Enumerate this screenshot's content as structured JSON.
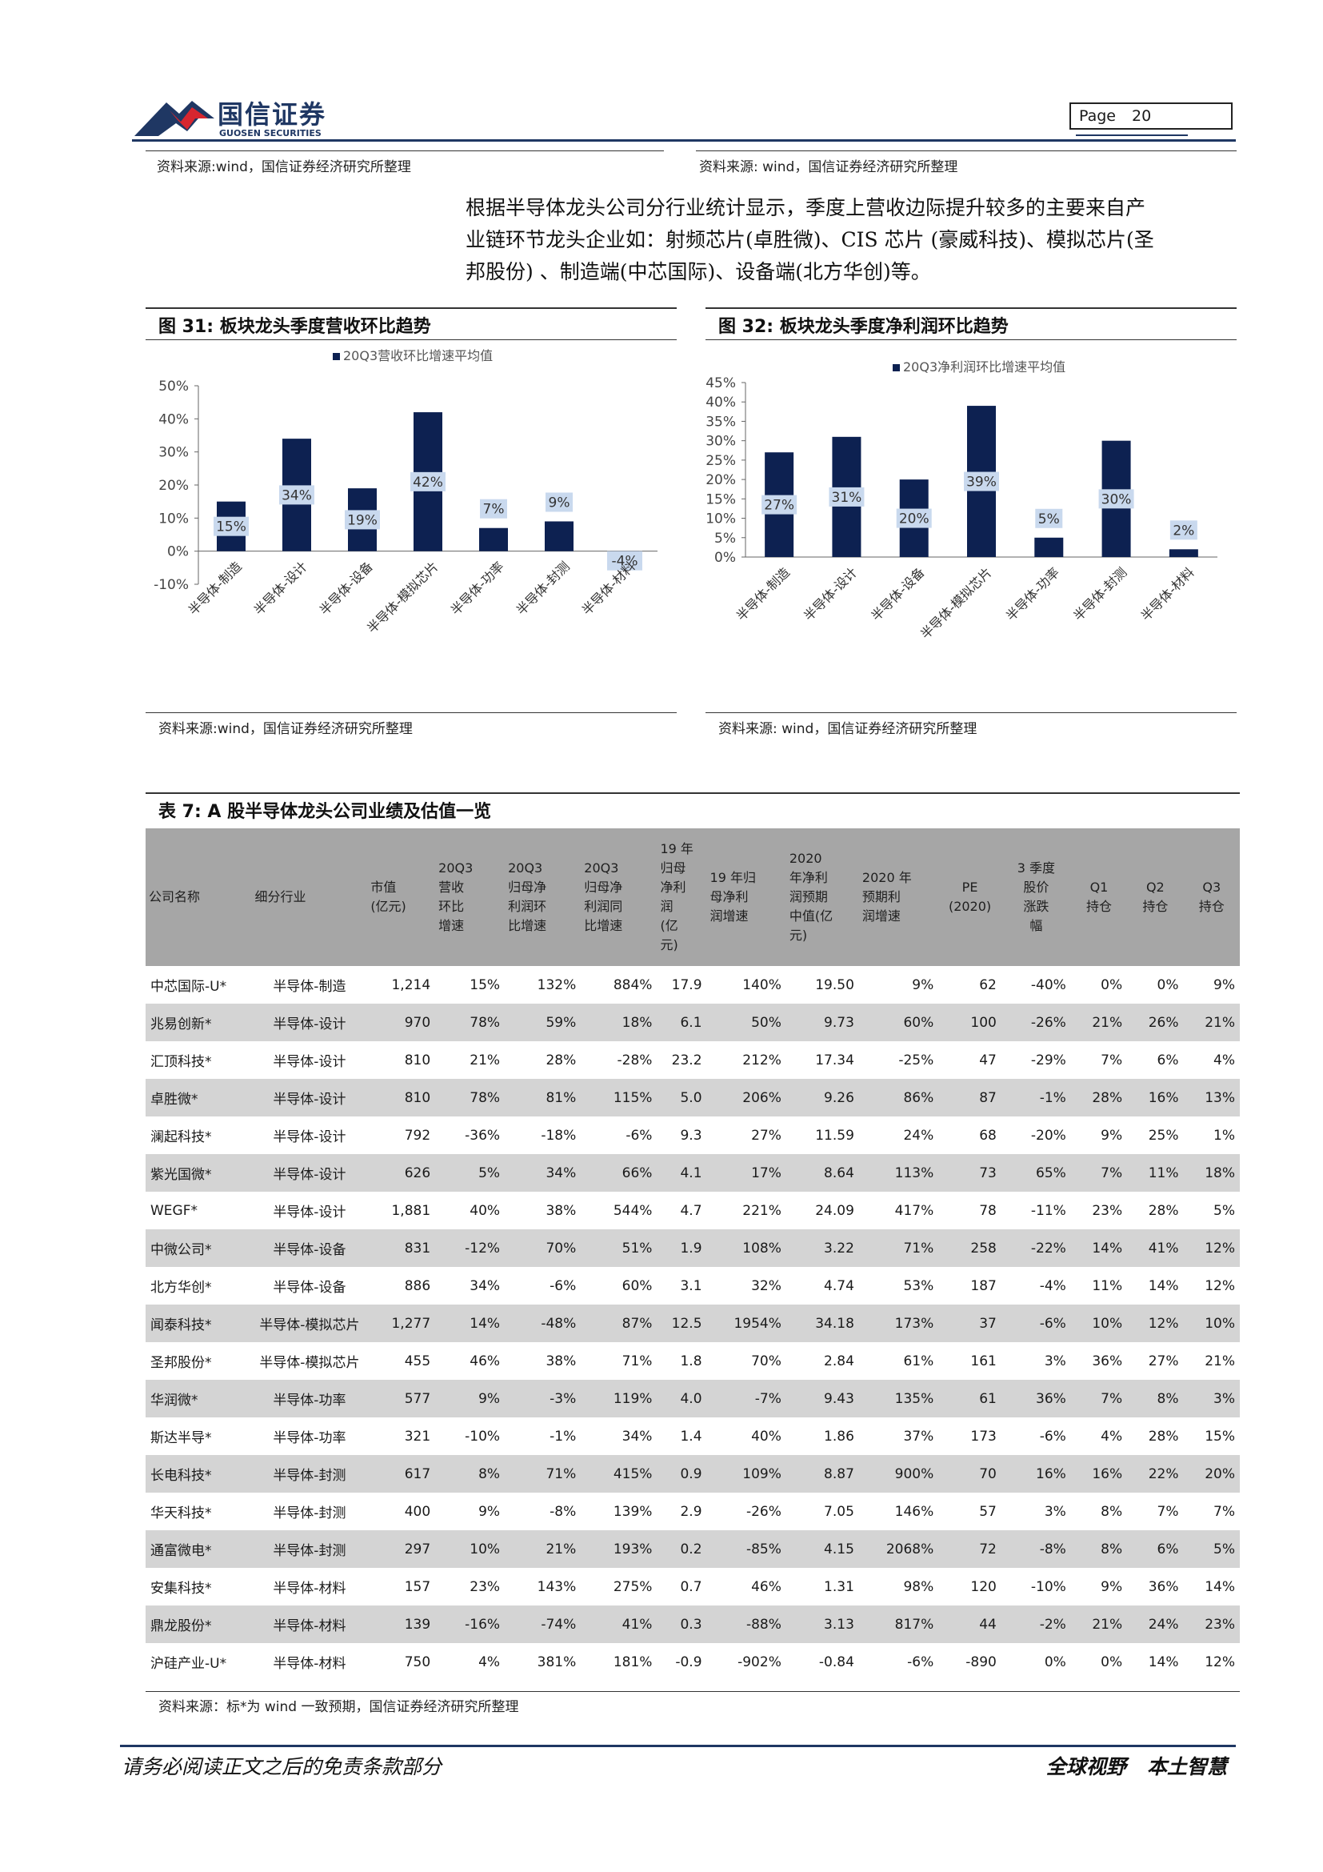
{
  "header": {
    "logo_cn": "国信证券",
    "logo_en": "GUOSEN SECURITIES",
    "page_label": "Page",
    "page_number": "20",
    "source_left": "资料来源:wind，国信证券经济研究所整理",
    "source_right": "资料来源: wind，国信证券经济研究所整理"
  },
  "intro": {
    "line1": "根据半导体龙头公司分行业统计显示，季度上营收边际提升较多的主要来自产",
    "line2": "业链环节龙头企业如：射频芯片(卓胜微)、CIS 芯片 (豪威科技)、模拟芯片(圣",
    "line3": "邦股份) 、制造端(中芯国际)、设备端(北方华创)等。"
  },
  "figure31": {
    "title": "图 31:  板块龙头季度营收环比趋势",
    "source": "资料来源:wind，国信证券经济研究所整理"
  },
  "figure32": {
    "title": "图 32:  板块龙头季度净利润环比趋势",
    "source": "资料来源: wind，国信证券经济研究所整理"
  },
  "chart_data": [
    {
      "type": "bar",
      "legend": "20Q3营收环比增速平均值",
      "categories": [
        "半导体-制造",
        "半导体-设计",
        "半导体-设备",
        "半导体-模拟芯片",
        "半导体-功率",
        "半导体-封测",
        "半导体-材料"
      ],
      "values": [
        15,
        34,
        19,
        42,
        7,
        9,
        -4
      ],
      "data_labels": [
        "15%",
        "34%",
        "19%",
        "42%",
        "7%",
        "9%",
        "-4%"
      ],
      "yticks": [
        "50%",
        "40%",
        "30%",
        "20%",
        "10%",
        "0%",
        "-10%"
      ],
      "ylim": [
        -10,
        50
      ],
      "legend_position": "top",
      "color": "#0d2151"
    },
    {
      "type": "bar",
      "legend": "20Q3净利润环比增速平均值",
      "categories": [
        "半导体-制造",
        "半导体-设计",
        "半导体-设备",
        "半导体-模拟芯片",
        "半导体-功率",
        "半导体-封测",
        "半导体-材料"
      ],
      "values": [
        27,
        31,
        20,
        39,
        5,
        30,
        2
      ],
      "data_labels": [
        "27%",
        "31%",
        "20%",
        "39%",
        "5%",
        "30%",
        "2%"
      ],
      "yticks": [
        "45%",
        "40%",
        "35%",
        "30%",
        "25%",
        "20%",
        "15%",
        "10%",
        "5%",
        "0%"
      ],
      "ylim": [
        0,
        45
      ],
      "legend_position": "top",
      "color": "#0d2151"
    }
  ],
  "table7": {
    "title": "表 7:  A 股半导体龙头公司业绩及估值一览",
    "headers": [
      "公司名称",
      "细分行业",
      "市值\n(亿元)",
      "20Q3\n营收\n环比\n增速",
      "20Q3\n归母净\n利润环\n比增速",
      "20Q3\n归母净\n利润同\n比增速",
      "19 年\n归母\n净利\n润\n(亿\n元)",
      "19 年归\n母净利\n润增速",
      "2020\n年净利\n润预期\n中值(亿\n元)",
      "2020 年\n预期利\n润增速",
      "PE\n(2020)",
      "3 季度\n股价\n涨跌\n幅",
      "Q1\n持仓",
      "Q2\n持仓",
      "Q3\n持仓"
    ],
    "rows": [
      [
        "中芯国际-U*",
        "半导体-制造",
        "1,214",
        "15%",
        "132%",
        "884%",
        "17.9",
        "140%",
        "19.50",
        "9%",
        "62",
        "-40%",
        "0%",
        "0%",
        "9%"
      ],
      [
        "兆易创新*",
        "半导体-设计",
        "970",
        "78%",
        "59%",
        "18%",
        "6.1",
        "50%",
        "9.73",
        "60%",
        "100",
        "-26%",
        "21%",
        "26%",
        "21%"
      ],
      [
        "汇顶科技*",
        "半导体-设计",
        "810",
        "21%",
        "28%",
        "-28%",
        "23.2",
        "212%",
        "17.34",
        "-25%",
        "47",
        "-29%",
        "7%",
        "6%",
        "4%"
      ],
      [
        "卓胜微*",
        "半导体-设计",
        "810",
        "78%",
        "81%",
        "115%",
        "5.0",
        "206%",
        "9.26",
        "86%",
        "87",
        "-1%",
        "28%",
        "16%",
        "13%"
      ],
      [
        "澜起科技*",
        "半导体-设计",
        "792",
        "-36%",
        "-18%",
        "-6%",
        "9.3",
        "27%",
        "11.59",
        "24%",
        "68",
        "-20%",
        "9%",
        "25%",
        "1%"
      ],
      [
        "紫光国微*",
        "半导体-设计",
        "626",
        "5%",
        "34%",
        "66%",
        "4.1",
        "17%",
        "8.64",
        "113%",
        "73",
        "65%",
        "7%",
        "11%",
        "18%"
      ],
      [
        "WEGF*",
        "半导体-设计",
        "1,881",
        "40%",
        "38%",
        "544%",
        "4.7",
        "221%",
        "24.09",
        "417%",
        "78",
        "-11%",
        "23%",
        "28%",
        "5%"
      ],
      [
        "中微公司*",
        "半导体-设备",
        "831",
        "-12%",
        "70%",
        "51%",
        "1.9",
        "108%",
        "3.22",
        "71%",
        "258",
        "-22%",
        "14%",
        "41%",
        "12%"
      ],
      [
        "北方华创*",
        "半导体-设备",
        "886",
        "34%",
        "-6%",
        "60%",
        "3.1",
        "32%",
        "4.74",
        "53%",
        "187",
        "-4%",
        "11%",
        "14%",
        "12%"
      ],
      [
        "闻泰科技*",
        "半导体-模拟芯片",
        "1,277",
        "14%",
        "-48%",
        "87%",
        "12.5",
        "1954%",
        "34.18",
        "173%",
        "37",
        "-6%",
        "10%",
        "12%",
        "10%"
      ],
      [
        "圣邦股份*",
        "半导体-模拟芯片",
        "455",
        "46%",
        "38%",
        "71%",
        "1.8",
        "70%",
        "2.84",
        "61%",
        "161",
        "3%",
        "36%",
        "27%",
        "21%"
      ],
      [
        "华润微*",
        "半导体-功率",
        "577",
        "9%",
        "-3%",
        "119%",
        "4.0",
        "-7%",
        "9.43",
        "135%",
        "61",
        "36%",
        "7%",
        "8%",
        "3%"
      ],
      [
        "斯达半导*",
        "半导体-功率",
        "321",
        "-10%",
        "-1%",
        "34%",
        "1.4",
        "40%",
        "1.86",
        "37%",
        "173",
        "-6%",
        "4%",
        "28%",
        "15%"
      ],
      [
        "长电科技*",
        "半导体-封测",
        "617",
        "8%",
        "71%",
        "415%",
        "0.9",
        "109%",
        "8.87",
        "900%",
        "70",
        "16%",
        "16%",
        "22%",
        "20%"
      ],
      [
        "华天科技*",
        "半导体-封测",
        "400",
        "9%",
        "-8%",
        "139%",
        "2.9",
        "-26%",
        "7.05",
        "146%",
        "57",
        "3%",
        "8%",
        "7%",
        "7%"
      ],
      [
        "通富微电*",
        "半导体-封测",
        "297",
        "10%",
        "21%",
        "193%",
        "0.2",
        "-85%",
        "4.15",
        "2068%",
        "72",
        "-8%",
        "8%",
        "6%",
        "5%"
      ],
      [
        "安集科技*",
        "半导体-材料",
        "157",
        "23%",
        "143%",
        "275%",
        "0.7",
        "46%",
        "1.31",
        "98%",
        "120",
        "-10%",
        "9%",
        "36%",
        "14%"
      ],
      [
        "鼎龙股份*",
        "半导体-材料",
        "139",
        "-16%",
        "-74%",
        "41%",
        "0.3",
        "-88%",
        "3.13",
        "817%",
        "44",
        "-2%",
        "21%",
        "24%",
        "23%"
      ],
      [
        "沪硅产业-U*",
        "半导体-材料",
        "750",
        "4%",
        "381%",
        "181%",
        "-0.9",
        "-902%",
        "-0.84",
        "-6%",
        "-890",
        "0%",
        "0%",
        "14%",
        "12%"
      ]
    ],
    "source": "资料来源：标*为 wind 一致预期，国信证券经济研究所整理"
  },
  "footer": {
    "left": "请务必阅读正文之后的免责条款部分",
    "right": "全球视野   本土智慧"
  },
  "colors": {
    "navy": "#1f3763",
    "bar": "#0d2151",
    "logo_red": "#d7262f",
    "label_box": "#c9d9ee",
    "header_gray": "#a6a6a6",
    "row_gray": "#d4d4d4"
  }
}
